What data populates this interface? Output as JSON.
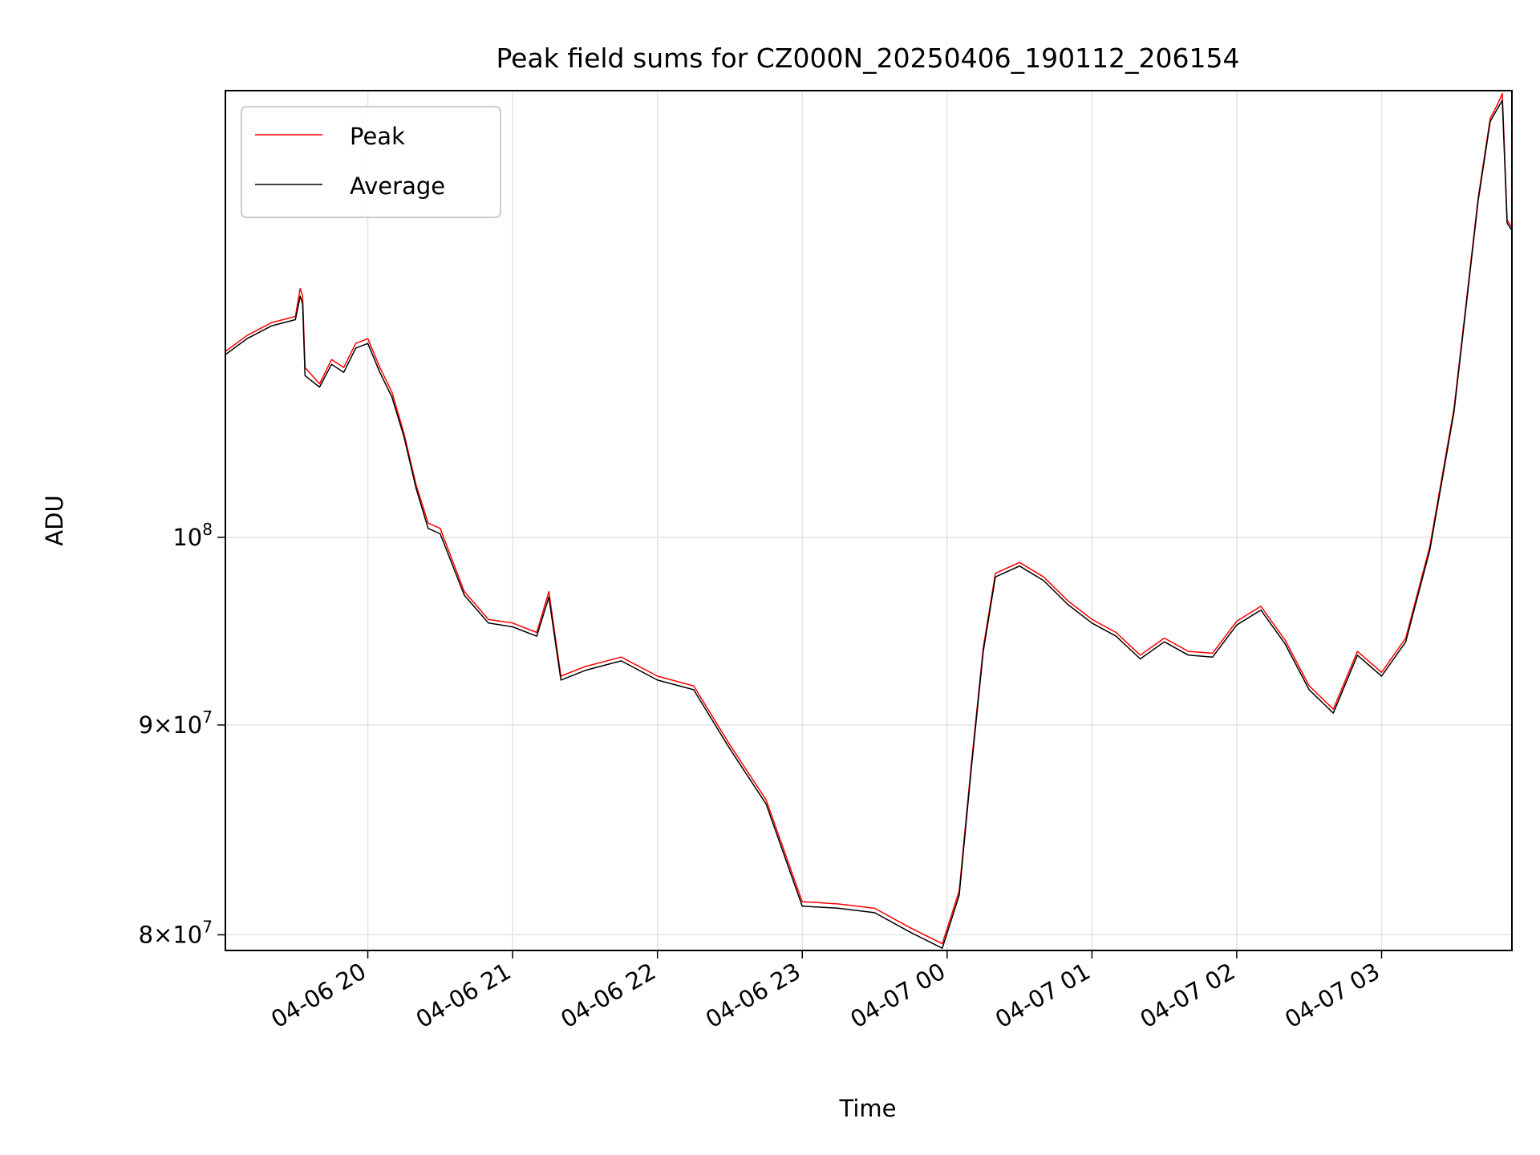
{
  "chart_data": {
    "type": "line",
    "title": "Peak field sums for CZ000N_20250406_190112_206154",
    "xlabel": "Time",
    "ylabel": "ADU",
    "x_tick_labels": [
      "04-06 20",
      "04-06 21",
      "04-06 22",
      "04-06 23",
      "04-07 00",
      "04-07 01",
      "04-07 02",
      "04-07 03"
    ],
    "x_ticks": [
      "2025-04-06 20:00",
      "2025-04-06 21:00",
      "2025-04-06 22:00",
      "2025-04-06 23:00",
      "2025-04-07 00:00",
      "2025-04-07 01:00",
      "2025-04-07 02:00",
      "2025-04-07 03:00"
    ],
    "y_scale": "log",
    "y_ticks": [
      {
        "value": 100000000,
        "base": "10",
        "exp": "8",
        "mant": ""
      },
      {
        "value": 90000000,
        "base": "10",
        "exp": "7",
        "mant": "9"
      },
      {
        "value": 80000000,
        "base": "10",
        "exp": "7",
        "mant": "8"
      }
    ],
    "xlim": [
      "2025-04-06 19:01",
      "2025-04-07 03:54"
    ],
    "ylim": [
      79300000,
      128500000
    ],
    "grid": true,
    "legend": {
      "position": "top-left"
    },
    "series": [
      {
        "name": "Peak",
        "color": "#ff0000",
        "x": [
          "2025-04-06 19:01",
          "2025-04-06 19:10",
          "2025-04-06 19:20",
          "2025-04-06 19:30",
          "2025-04-06 19:32",
          "2025-04-06 19:33",
          "2025-04-06 19:34",
          "2025-04-06 19:40",
          "2025-04-06 19:45",
          "2025-04-06 19:50",
          "2025-04-06 19:55",
          "2025-04-06 20:00",
          "2025-04-06 20:05",
          "2025-04-06 20:10",
          "2025-04-06 20:15",
          "2025-04-06 20:20",
          "2025-04-06 20:25",
          "2025-04-06 20:30",
          "2025-04-06 20:40",
          "2025-04-06 20:50",
          "2025-04-06 21:00",
          "2025-04-06 21:10",
          "2025-04-06 21:15",
          "2025-04-06 21:20",
          "2025-04-06 21:30",
          "2025-04-06 21:45",
          "2025-04-06 22:00",
          "2025-04-06 22:15",
          "2025-04-06 22:30",
          "2025-04-06 22:45",
          "2025-04-06 23:00",
          "2025-04-06 23:15",
          "2025-04-06 23:30",
          "2025-04-06 23:45",
          "2025-04-06 23:58",
          "2025-04-07 00:05",
          "2025-04-07 00:10",
          "2025-04-07 00:15",
          "2025-04-07 00:20",
          "2025-04-07 00:30",
          "2025-04-07 00:40",
          "2025-04-07 00:50",
          "2025-04-07 01:00",
          "2025-04-07 01:10",
          "2025-04-07 01:20",
          "2025-04-07 01:30",
          "2025-04-07 01:40",
          "2025-04-07 01:50",
          "2025-04-07 02:00",
          "2025-04-07 02:10",
          "2025-04-07 02:20",
          "2025-04-07 02:30",
          "2025-04-07 02:40",
          "2025-04-07 02:50",
          "2025-04-07 03:00",
          "2025-04-07 03:10",
          "2025-04-07 03:20",
          "2025-04-07 03:30",
          "2025-04-07 03:35",
          "2025-04-07 03:40",
          "2025-04-07 03:45",
          "2025-04-07 03:48",
          "2025-04-07 03:50",
          "2025-04-07 03:52",
          "2025-04-07 03:54"
        ],
        "y": [
          111000000,
          112000000,
          112800000,
          113200000,
          115000000,
          114500000,
          110000000,
          109000000,
          110500000,
          110000000,
          111500000,
          111800000,
          110000000,
          108500000,
          106000000,
          103000000,
          100800000,
          100500000,
          97000000,
          95500000,
          95300000,
          94800000,
          97000000,
          92500000,
          93000000,
          93500000,
          92500000,
          92000000,
          89000000,
          86300000,
          81500000,
          81400000,
          81200000,
          80300000,
          79600000,
          82000000,
          88000000,
          94000000,
          98000000,
          98600000,
          97800000,
          96500000,
          95500000,
          94800000,
          93600000,
          94500000,
          93800000,
          93700000,
          95400000,
          96200000,
          94400000,
          92000000,
          90800000,
          93800000,
          92700000,
          94500000,
          99500000,
          107500000,
          114000000,
          121000000,
          126500000,
          127500000,
          128300000,
          119500000,
          119000000
        ]
      },
      {
        "name": "Average",
        "color": "#000000",
        "x": [
          "2025-04-06 19:01",
          "2025-04-06 19:10",
          "2025-04-06 19:20",
          "2025-04-06 19:30",
          "2025-04-06 19:32",
          "2025-04-06 19:33",
          "2025-04-06 19:34",
          "2025-04-06 19:40",
          "2025-04-06 19:45",
          "2025-04-06 19:50",
          "2025-04-06 19:55",
          "2025-04-06 20:00",
          "2025-04-06 20:05",
          "2025-04-06 20:10",
          "2025-04-06 20:15",
          "2025-04-06 20:20",
          "2025-04-06 20:25",
          "2025-04-06 20:30",
          "2025-04-06 20:40",
          "2025-04-06 20:50",
          "2025-04-06 21:00",
          "2025-04-06 21:10",
          "2025-04-06 21:15",
          "2025-04-06 21:20",
          "2025-04-06 21:30",
          "2025-04-06 21:45",
          "2025-04-06 22:00",
          "2025-04-06 22:15",
          "2025-04-06 22:30",
          "2025-04-06 22:45",
          "2025-04-06 23:00",
          "2025-04-06 23:15",
          "2025-04-06 23:30",
          "2025-04-06 23:45",
          "2025-04-06 23:58",
          "2025-04-07 00:05",
          "2025-04-07 00:10",
          "2025-04-07 00:15",
          "2025-04-07 00:20",
          "2025-04-07 00:30",
          "2025-04-07 00:40",
          "2025-04-07 00:50",
          "2025-04-07 01:00",
          "2025-04-07 01:10",
          "2025-04-07 01:20",
          "2025-04-07 01:30",
          "2025-04-07 01:40",
          "2025-04-07 01:50",
          "2025-04-07 02:00",
          "2025-04-07 02:10",
          "2025-04-07 02:20",
          "2025-04-07 02:30",
          "2025-04-07 02:40",
          "2025-04-07 02:50",
          "2025-04-07 03:00",
          "2025-04-07 03:10",
          "2025-04-07 03:20",
          "2025-04-07 03:30",
          "2025-04-07 03:35",
          "2025-04-07 03:40",
          "2025-04-07 03:45",
          "2025-04-07 03:48",
          "2025-04-07 03:50",
          "2025-04-07 03:52",
          "2025-04-07 03:54"
        ],
        "y": [
          110800000,
          111800000,
          112600000,
          113000000,
          114500000,
          114000000,
          109500000,
          108800000,
          110200000,
          109700000,
          111200000,
          111500000,
          109700000,
          108200000,
          105800000,
          102800000,
          100500000,
          100200000,
          96800000,
          95300000,
          95100000,
          94600000,
          96700000,
          92300000,
          92800000,
          93300000,
          92300000,
          91800000,
          88800000,
          86100000,
          81300000,
          81200000,
          81000000,
          80100000,
          79400000,
          81800000,
          87800000,
          93800000,
          97800000,
          98400000,
          97600000,
          96300000,
          95300000,
          94600000,
          93400000,
          94300000,
          93600000,
          93500000,
          95200000,
          96000000,
          94200000,
          91800000,
          90600000,
          93600000,
          92500000,
          94300000,
          99300000,
          107300000,
          113800000,
          120800000,
          126300000,
          127200000,
          127800000,
          119300000,
          118800000
        ]
      }
    ]
  }
}
